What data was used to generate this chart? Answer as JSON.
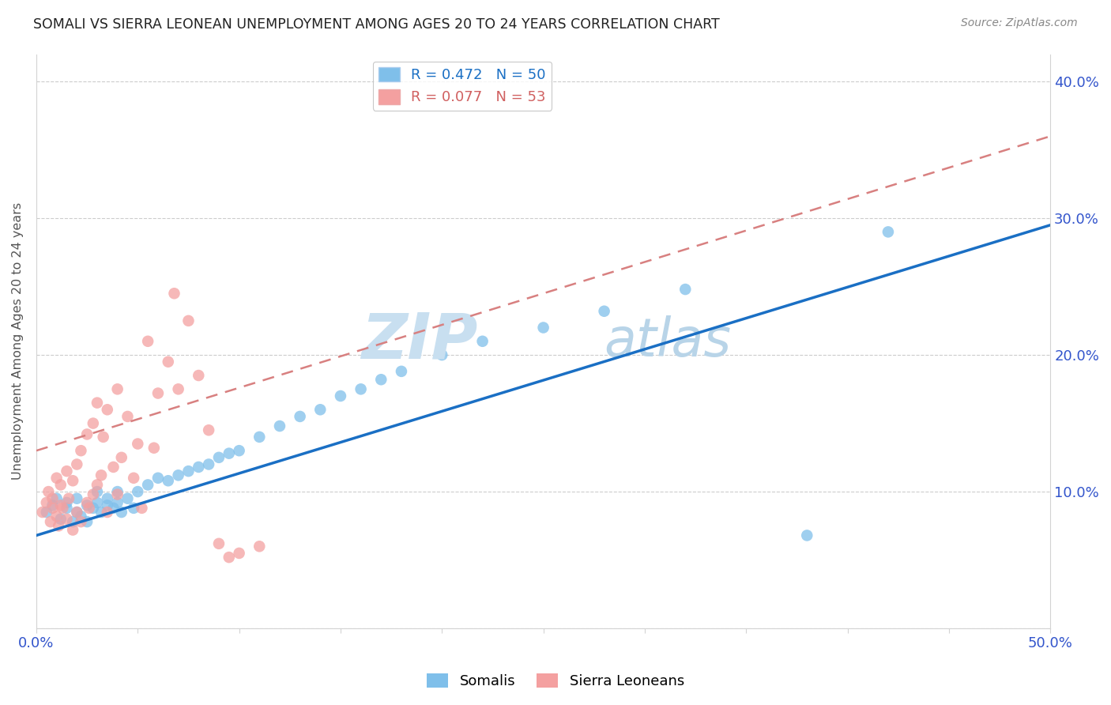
{
  "title": "SOMALI VS SIERRA LEONEAN UNEMPLOYMENT AMONG AGES 20 TO 24 YEARS CORRELATION CHART",
  "source": "Source: ZipAtlas.com",
  "ylabel": "Unemployment Among Ages 20 to 24 years",
  "xlim": [
    0.0,
    0.5
  ],
  "ylim": [
    0.0,
    0.42
  ],
  "somali_R": 0.472,
  "somali_N": 50,
  "sierra_R": 0.077,
  "sierra_N": 53,
  "somali_color": "#7fbfea",
  "sierra_color": "#f4a0a0",
  "somali_line_color": "#1a6fc4",
  "sierra_line_color": "#d88080",
  "watermark_zip": "ZIP",
  "watermark_atlas": "atlas",
  "legend_somali": "Somalis",
  "legend_sierra": "Sierra Leoneans",
  "somali_x": [
    0.005,
    0.008,
    0.01,
    0.012,
    0.015,
    0.015,
    0.018,
    0.02,
    0.02,
    0.022,
    0.025,
    0.025,
    0.028,
    0.03,
    0.03,
    0.032,
    0.035,
    0.035,
    0.038,
    0.04,
    0.04,
    0.042,
    0.045,
    0.048,
    0.05,
    0.055,
    0.06,
    0.065,
    0.07,
    0.075,
    0.08,
    0.085,
    0.09,
    0.095,
    0.1,
    0.11,
    0.12,
    0.13,
    0.14,
    0.15,
    0.16,
    0.17,
    0.18,
    0.2,
    0.22,
    0.25,
    0.28,
    0.32,
    0.38,
    0.42
  ],
  "somali_y": [
    0.085,
    0.09,
    0.095,
    0.08,
    0.088,
    0.092,
    0.078,
    0.085,
    0.095,
    0.082,
    0.09,
    0.078,
    0.088,
    0.092,
    0.1,
    0.085,
    0.09,
    0.095,
    0.088,
    0.092,
    0.1,
    0.085,
    0.095,
    0.088,
    0.1,
    0.105,
    0.11,
    0.108,
    0.112,
    0.115,
    0.118,
    0.12,
    0.125,
    0.128,
    0.13,
    0.14,
    0.148,
    0.155,
    0.16,
    0.17,
    0.175,
    0.182,
    0.188,
    0.2,
    0.21,
    0.22,
    0.232,
    0.248,
    0.068,
    0.29
  ],
  "sierra_x": [
    0.003,
    0.005,
    0.006,
    0.007,
    0.008,
    0.008,
    0.01,
    0.01,
    0.011,
    0.012,
    0.012,
    0.013,
    0.015,
    0.015,
    0.016,
    0.018,
    0.018,
    0.02,
    0.02,
    0.022,
    0.022,
    0.025,
    0.025,
    0.026,
    0.028,
    0.028,
    0.03,
    0.03,
    0.032,
    0.033,
    0.035,
    0.035,
    0.038,
    0.04,
    0.04,
    0.042,
    0.045,
    0.048,
    0.05,
    0.052,
    0.055,
    0.058,
    0.06,
    0.065,
    0.068,
    0.07,
    0.075,
    0.08,
    0.085,
    0.09,
    0.095,
    0.1,
    0.11
  ],
  "sierra_y": [
    0.085,
    0.092,
    0.1,
    0.078,
    0.088,
    0.095,
    0.082,
    0.11,
    0.075,
    0.09,
    0.105,
    0.088,
    0.115,
    0.08,
    0.095,
    0.072,
    0.108,
    0.085,
    0.12,
    0.078,
    0.13,
    0.092,
    0.142,
    0.088,
    0.098,
    0.15,
    0.105,
    0.165,
    0.112,
    0.14,
    0.085,
    0.16,
    0.118,
    0.098,
    0.175,
    0.125,
    0.155,
    0.11,
    0.135,
    0.088,
    0.21,
    0.132,
    0.172,
    0.195,
    0.245,
    0.175,
    0.225,
    0.185,
    0.145,
    0.062,
    0.052,
    0.055,
    0.06
  ],
  "somali_line_x0": 0.0,
  "somali_line_y0": 0.068,
  "somali_line_x1": 0.5,
  "somali_line_y1": 0.295,
  "sierra_line_x0": 0.0,
  "sierra_line_y0": 0.13,
  "sierra_line_x1": 0.5,
  "sierra_line_y1": 0.36
}
